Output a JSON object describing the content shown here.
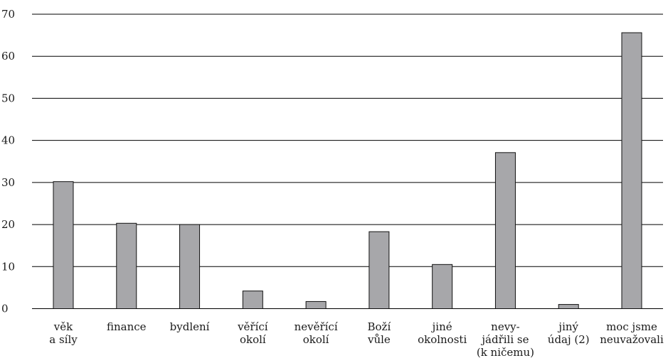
{
  "chart_data": {
    "type": "bar",
    "title": "",
    "xlabel": "",
    "ylabel": "",
    "ylim": [
      0,
      70
    ],
    "yticks": [
      0,
      10,
      20,
      30,
      40,
      50,
      60,
      70
    ],
    "grid": true,
    "bar_color": "#a7a7aa",
    "categories": [
      [
        "věk",
        "a síly"
      ],
      [
        "finance"
      ],
      [
        "bydlení"
      ],
      [
        "věřící",
        "okolí"
      ],
      [
        "nevěřící",
        "okolí"
      ],
      [
        "Boží",
        "vůle"
      ],
      [
        "jiné",
        "okolnosti"
      ],
      [
        "nevy-",
        "jádřili se",
        "(k ničemu)"
      ],
      [
        "jiný",
        "údaj (2)"
      ],
      [
        "moc jsme",
        "neuvažovali"
      ]
    ],
    "values": [
      30.2,
      20.3,
      20.0,
      4.2,
      1.7,
      18.3,
      10.5,
      37.1,
      1.0,
      65.6
    ]
  }
}
